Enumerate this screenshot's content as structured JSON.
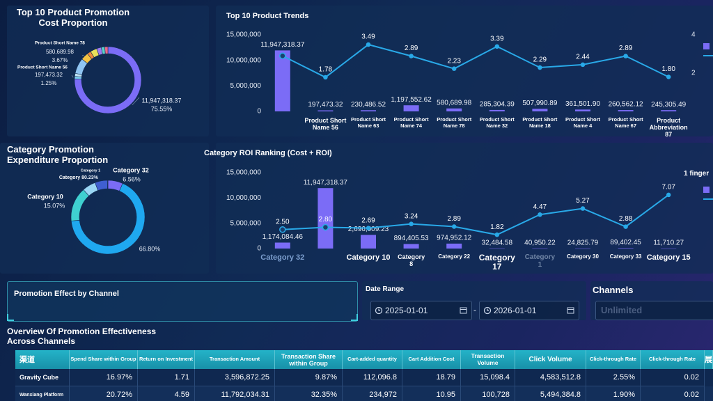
{
  "chart_data": [
    {
      "type": "donut",
      "title": "Top 10 Product Promotion Cost Proportion",
      "categories": [
        null,
        "Product Short Name 56",
        null,
        null,
        "Product Short Name 78",
        null,
        null,
        null,
        null,
        null
      ],
      "values": [
        75.55,
        1.25,
        1.46,
        7.57,
        3.67,
        1.8,
        3.21,
        2.29,
        1.65,
        1.55
      ],
      "value_labels": [
        "75.55%",
        "1.25%",
        null,
        null,
        "3.67%",
        null,
        null,
        null,
        null,
        null
      ],
      "amounts": [
        11947318.37,
        197473.32,
        null,
        null,
        580689.98,
        null,
        null,
        null,
        null,
        null
      ],
      "amount_labels": [
        "11,947,318.37",
        "197,473.32",
        null,
        null,
        "580,689.98",
        null,
        null,
        null,
        null,
        null
      ],
      "colors": [
        "#7b6cf6",
        "#7fd3f7",
        "#bfe3f5",
        "#8fc4f2",
        "#f5c242",
        "#f08a3c",
        "#e8e05a",
        "#9b7bf0",
        "#5bd1c9",
        "#ec6a8a"
      ]
    },
    {
      "type": "bar_line",
      "title": "Top 10 Product Trends",
      "categories": [
        null,
        "Product Short Name 56",
        "Product Short Name 63",
        "Product Short Name 74",
        "Product Short Name 78",
        "Product Short Name 32",
        "Product Short Name 18",
        "Product Short Name 4",
        "Product Short Name 67",
        "Product Abbreviation 87"
      ],
      "series": [
        {
          "type": "bar",
          "color": "#7b6cf6",
          "values": [
            11947318.37,
            197473.32,
            230486.52,
            1197552.62,
            580689.98,
            285304.39,
            507990.89,
            361501.9,
            260562.12,
            245305.49
          ],
          "value_labels": [
            "11,947,318.37",
            "197,473.32",
            "230,486.52",
            "1,197,552.62",
            "580,689.98",
            "285,304.39",
            "507,990.89",
            "361,501.90",
            "260,562.12",
            "245,305.49"
          ]
        },
        {
          "type": "line",
          "axis": "y2",
          "color": "#29a9e8",
          "values": [
            2.9,
            1.78,
            3.49,
            2.89,
            2.23,
            3.39,
            2.29,
            2.44,
            2.89,
            1.8
          ],
          "value_labels": [
            null,
            "1.78",
            "3.49",
            "2.89",
            "2.23",
            "3.39",
            "2.29",
            "2.44",
            "2.89",
            "1.80"
          ]
        }
      ],
      "ylim": [
        0,
        15000000
      ],
      "yticks": [
        0,
        {
          "value": 5000000,
          "label": "5,000,000"
        },
        {
          "value": 10000000,
          "label": "10,000,000"
        },
        {
          "value": 15000000,
          "label": "15,000,000"
        }
      ],
      "y2lim": [
        0,
        4
      ],
      "y2ticks": [
        2,
        4
      ]
    },
    {
      "type": "donut",
      "title": "Category Promotion Expenditure Proportion",
      "categories": [
        "Category 32",
        null,
        "Category 10",
        "Category 1",
        null,
        "Category 8"
      ],
      "values": [
        6.56,
        66.8,
        15.07,
        5.9,
        5.44,
        0.23
      ],
      "value_labels": [
        "6.56%",
        "66.80%",
        "15.07%",
        null,
        null,
        "0.23%"
      ],
      "colors": [
        "#7b6cf6",
        "#1fa8f0",
        "#3fd0d0",
        "#9ad6f5",
        "#3f5fd0",
        "#5a7fe0"
      ]
    },
    {
      "type": "bar_line",
      "title": "Category ROI Ranking (Cost + ROI)",
      "legend_title": "1 finger",
      "categories": [
        "Category 32",
        null,
        "Category 10",
        "Category 8",
        "Category 22",
        "Category 17",
        "Category 1",
        "Category 30",
        "Category 33",
        "Category 15"
      ],
      "series": [
        {
          "type": "bar",
          "color": "#7b6cf6",
          "values": [
            1174084.46,
            11947318.37,
            2696009.23,
            894405.53,
            974952.12,
            32484.58,
            40950.22,
            24825.79,
            89402.45,
            11710.27
          ],
          "value_labels": [
            "1,174,084.46",
            "11,947,318.37",
            "2,696,009.23",
            "894,405.53",
            "974,952.12",
            "32,484.58",
            "40,950.22",
            "24,825.79",
            "89,402.45",
            "11,710.27"
          ]
        },
        {
          "type": "line",
          "axis": "y2",
          "color": "#29a9e8",
          "values": [
            2.5,
            2.8,
            2.69,
            3.24,
            2.89,
            1.82,
            4.47,
            5.27,
            2.88,
            7.07
          ],
          "value_labels": [
            "2.50",
            "2.80",
            "2.69",
            "3.24",
            "2.89",
            "1.82",
            "4.47",
            "5.27",
            "2.88",
            "7.07"
          ]
        }
      ],
      "ylim": [
        0,
        15000000
      ],
      "yticks": [
        0,
        {
          "value": 5000000,
          "label": "5,000,000"
        },
        {
          "value": 10000000,
          "label": "10,000,000"
        },
        {
          "value": 15000000,
          "label": "15,000,000"
        }
      ],
      "y2lim": [
        0,
        10
      ]
    }
  ],
  "promotion_panel": {
    "title": "Promotion Effect by Channel"
  },
  "filters": {
    "date_range": {
      "label": "Date Range",
      "start": "2025-01-01",
      "separator": "-",
      "end": "2026-01-01"
    },
    "channels": {
      "label": "Channels",
      "placeholder": "Unlimited"
    }
  },
  "table": {
    "title": "Overview Of Promotion Effectiveness Across Channels",
    "columns": [
      "渠道",
      "Spend Share within Group",
      "Return on Investment",
      "Transaction Amount",
      "Transaction Share within Group",
      "Cart-added quantity",
      "Cart Addition Cost",
      "Transaction Volume",
      "Click Volume",
      "Click-through Rate",
      "Click-through Rate",
      "展"
    ],
    "rows": [
      [
        "Gravity Cube",
        "16.97%",
        "1.71",
        "3,596,872.25",
        "9.87%",
        "112,096.8",
        "18.79",
        "15,098.4",
        "4,583,512.8",
        "2.55%",
        "0.02"
      ],
      [
        "Wanxiang Platform",
        "20.72%",
        "4.59",
        "11,792,034.31",
        "32.35%",
        "234,972",
        "10.95",
        "100,728",
        "5,494,384.8",
        "1.90%",
        "0.02"
      ]
    ]
  }
}
